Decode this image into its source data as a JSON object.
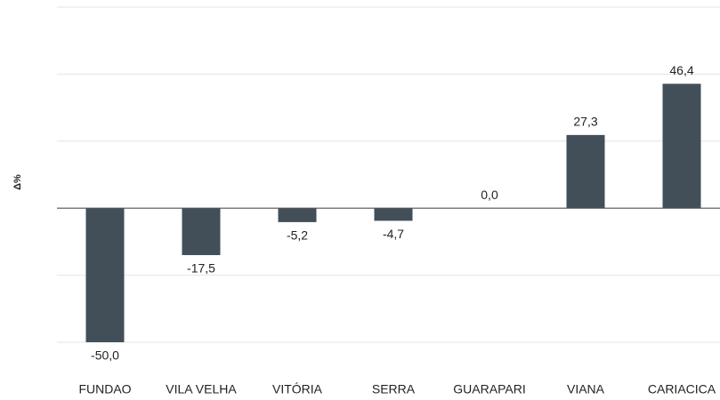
{
  "chart_data": {
    "type": "bar",
    "ylabel": "Δ%",
    "categories": [
      "FUNDAO",
      "VILA VELHA",
      "VITÓRIA",
      "SERRA",
      "GUARAPARI",
      "VIANA",
      "CARIACICA"
    ],
    "values": [
      -50.0,
      -17.5,
      -5.2,
      -4.7,
      0.0,
      27.3,
      46.4
    ],
    "value_labels": [
      "-50,0",
      "-17,5",
      "-5,2",
      "-4,7",
      "0,0",
      "27,3",
      "46,4"
    ],
    "color": "#424f59",
    "ylim": [
      -50,
      75
    ],
    "yticks": [
      -50,
      -25,
      0,
      25,
      50,
      75
    ],
    "grid": true
  }
}
